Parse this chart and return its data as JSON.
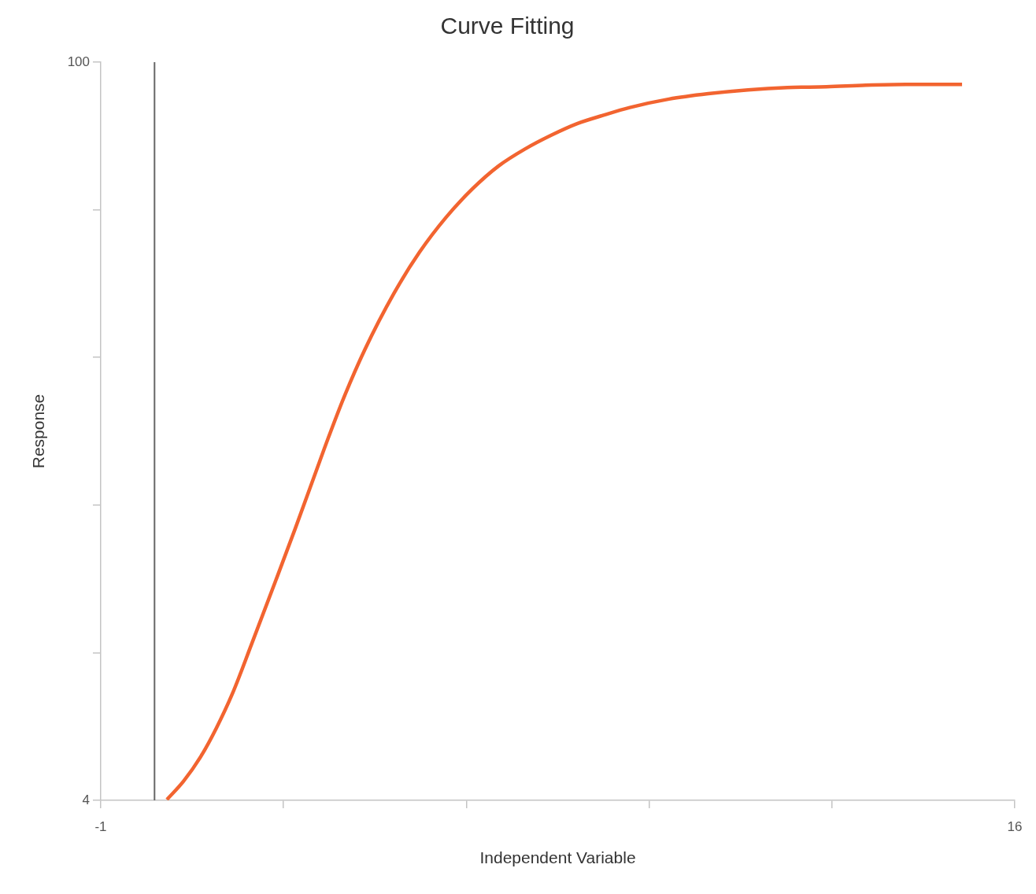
{
  "chart_data": {
    "type": "line",
    "title": "Curve Fitting",
    "xlabel": "Independent Variable",
    "ylabel": "Response",
    "x": [
      0.23,
      0.54,
      0.86,
      1.15,
      1.45,
      1.81,
      2.25,
      2.62,
      3.0,
      3.23,
      3.54,
      3.91,
      4.45,
      4.93,
      5.42,
      5.91,
      6.4,
      6.89,
      7.38,
      7.86,
      8.35,
      8.84,
      9.57,
      10.3,
      11.04,
      11.77,
      12.5,
      13.23,
      13.97,
      15.02
    ],
    "values": [
      4.1,
      6.5,
      9.7,
      13.4,
      17.9,
      24.4,
      32.5,
      39.4,
      46.7,
      51.1,
      56.7,
      62.6,
      69.9,
      75.3,
      79.8,
      83.5,
      86.5,
      88.7,
      90.5,
      92.0,
      93.1,
      94.1,
      95.2,
      95.9,
      96.4,
      96.7,
      96.8,
      97.0,
      97.1,
      97.1
    ],
    "color": "#f26430",
    "xlim": [
      -1,
      16
    ],
    "xticks": [
      -1,
      {
        "value": 2.4,
        "label": null
      },
      {
        "value": 5.8,
        "label": null
      },
      {
        "value": 9.2,
        "label": null
      },
      {
        "value": 12.6,
        "label": null
      },
      16
    ],
    "ylim": [
      4,
      100
    ],
    "yticks": [
      4,
      {
        "value": 23.2,
        "label": null
      },
      {
        "value": 42.4,
        "label": null
      },
      {
        "value": 61.6,
        "label": null
      },
      {
        "value": 80.8,
        "label": null
      },
      100
    ],
    "ref_lines": [
      {
        "axis": "x",
        "value": 0,
        "color": "#666666"
      }
    ],
    "grid": false,
    "legend": false,
    "marker": "none",
    "line_style": "solid"
  }
}
